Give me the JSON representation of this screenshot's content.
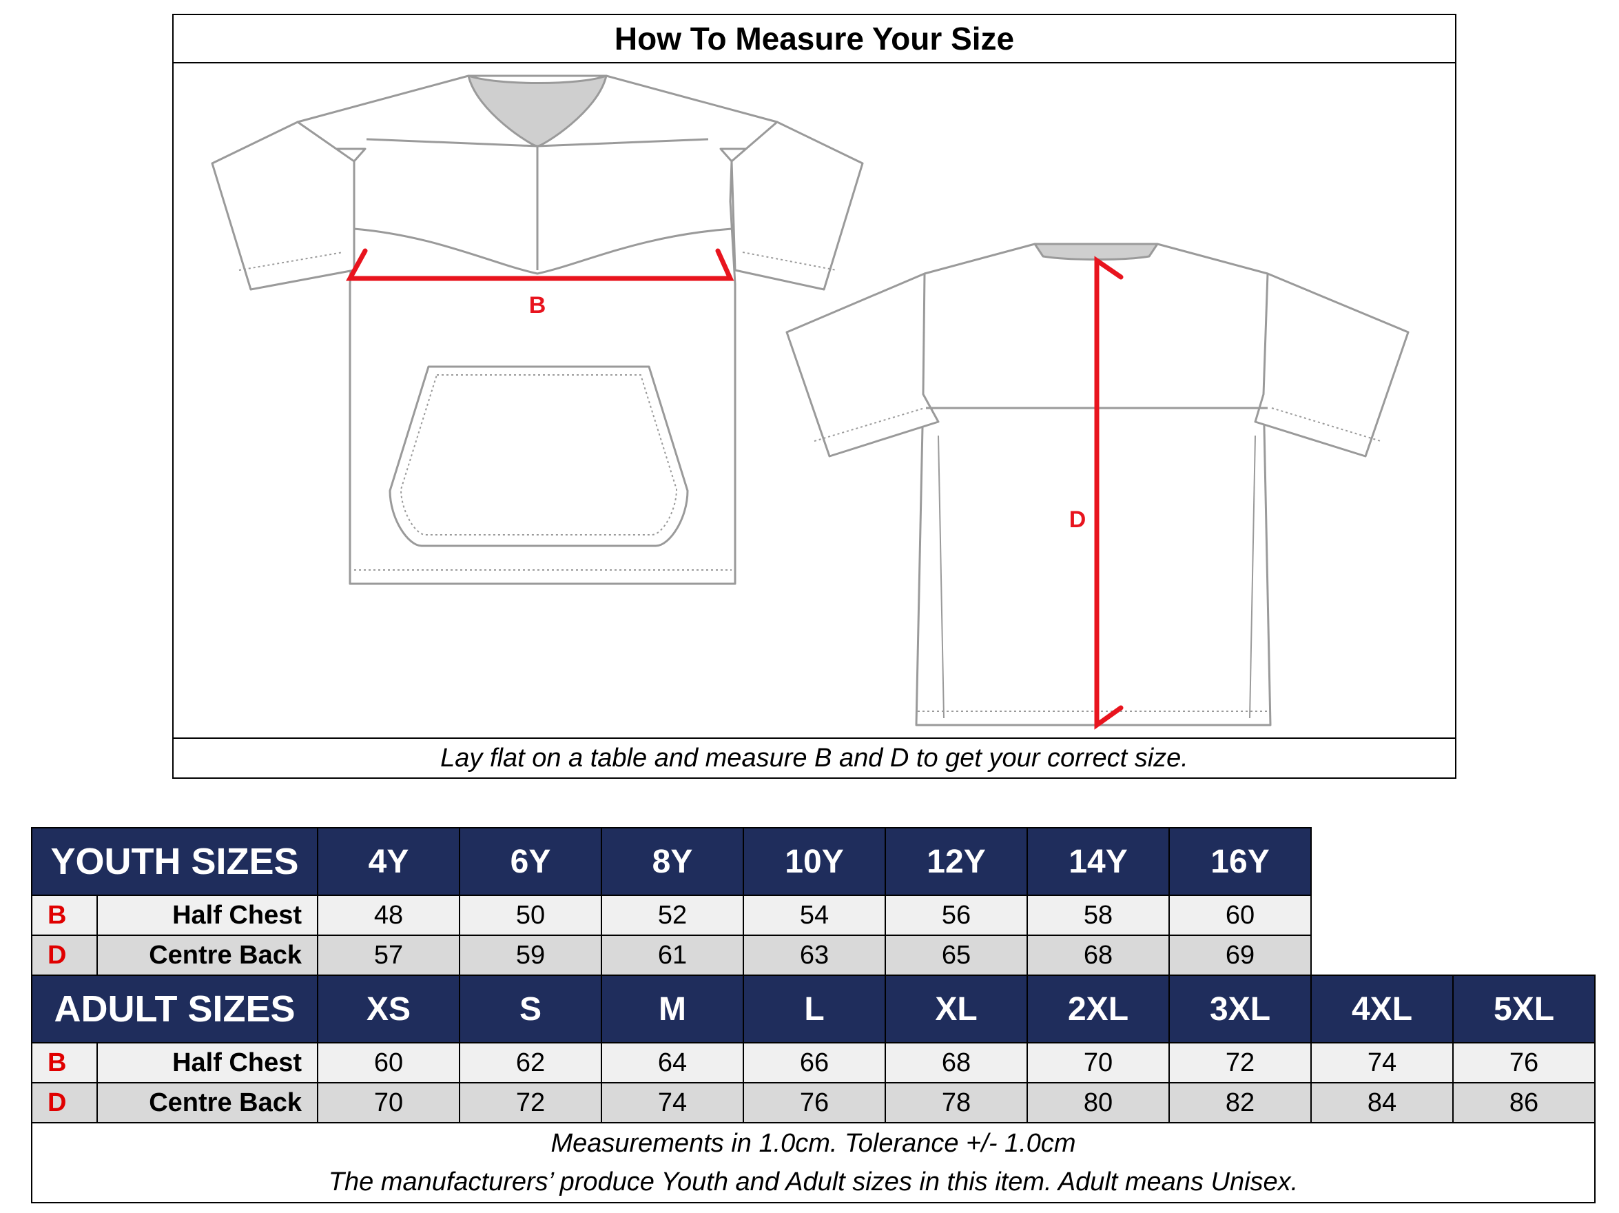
{
  "guide": {
    "title": "How To Measure Your Size",
    "note": "Lay flat on a table and measure B and D to get your correct size.",
    "marker_b": "B",
    "marker_d": "D",
    "marker_color": "#e8141e",
    "line_color": "#9a9a9a"
  },
  "youth": {
    "heading": "YOUTH SIZES",
    "sizes": [
      "4Y",
      "6Y",
      "8Y",
      "10Y",
      "12Y",
      "14Y",
      "16Y"
    ],
    "rows": [
      {
        "code": "B",
        "label": "Half Chest",
        "values": [
          "48",
          "50",
          "52",
          "54",
          "56",
          "58",
          "60"
        ]
      },
      {
        "code": "D",
        "label": "Centre Back",
        "values": [
          "57",
          "59",
          "61",
          "63",
          "65",
          "68",
          "69"
        ]
      }
    ]
  },
  "adult": {
    "heading": "ADULT SIZES",
    "sizes": [
      "XS",
      "S",
      "M",
      "L",
      "XL",
      "2XL",
      "3XL",
      "4XL",
      "5XL"
    ],
    "rows": [
      {
        "code": "B",
        "label": "Half Chest",
        "values": [
          "60",
          "62",
          "64",
          "66",
          "68",
          "70",
          "72",
          "74",
          "76"
        ]
      },
      {
        "code": "D",
        "label": "Centre Back",
        "values": [
          "70",
          "72",
          "74",
          "76",
          "78",
          "80",
          "82",
          "84",
          "86"
        ]
      }
    ]
  },
  "footer": {
    "line1": "Measurements in 1.0cm.  Tolerance +/- 1.0cm",
    "line2": "The manufacturers’ produce Youth and Adult sizes in this item. Adult means Unisex."
  },
  "colors": {
    "header_bg": "#1f2d5c",
    "row_b_bg": "#f0f0f0",
    "row_d_bg": "#d9d9d9"
  }
}
